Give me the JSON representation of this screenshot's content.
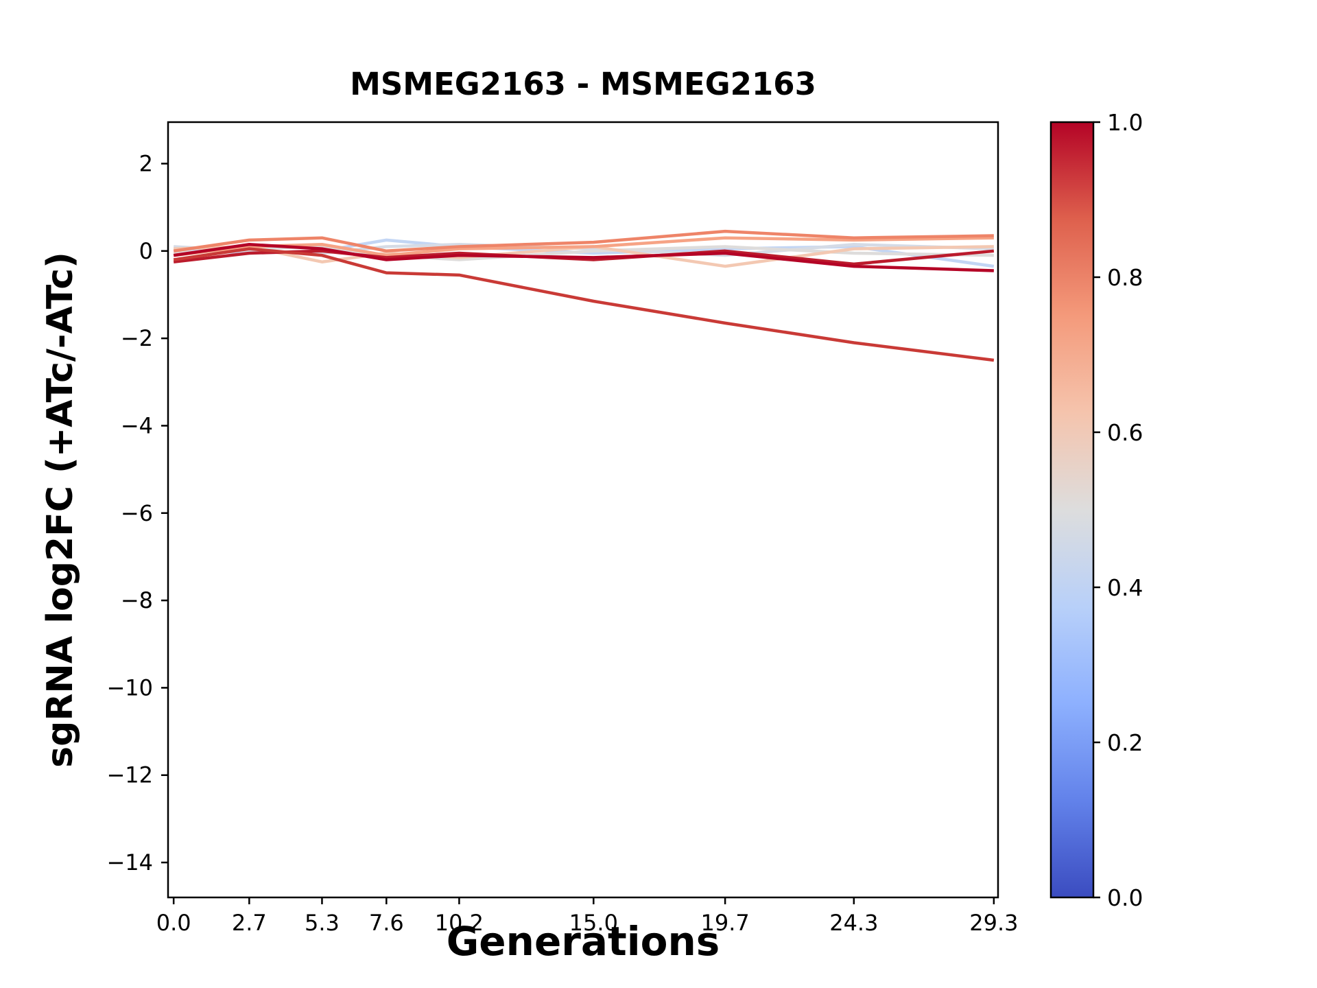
{
  "chart_data": {
    "type": "line",
    "title": "MSMEG2163 - MSMEG2163",
    "xlabel": "Generations",
    "ylabel": "sgRNA log2FC (+ATc/-ATc)",
    "x": [
      0.0,
      2.7,
      5.3,
      7.6,
      10.2,
      15.0,
      19.7,
      24.3,
      29.3
    ],
    "xticklabels": [
      "0.0",
      "2.7",
      "5.3",
      "7.6",
      "10.2",
      "15.0",
      "19.7",
      "24.3",
      "29.3"
    ],
    "yticks": [
      2,
      0,
      -2,
      -4,
      -6,
      -8,
      -10,
      -12,
      -14
    ],
    "xlim": [
      -0.2,
      29.45
    ],
    "ylim": [
      -14.8,
      2.95
    ],
    "grid": false,
    "legend": "none",
    "line_width": 4.5,
    "series": [
      {
        "cmap_value": 0.42,
        "color": "#c2d5f4",
        "values": [
          0.05,
          -0.05,
          0.0,
          0.25,
          0.1,
          -0.05,
          0.05,
          0.1,
          -0.35
        ]
      },
      {
        "cmap_value": 0.47,
        "color": "#d5dbe6",
        "values": [
          0.1,
          0.0,
          -0.05,
          0.1,
          0.15,
          0.05,
          -0.1,
          0.15,
          0.05
        ]
      },
      {
        "cmap_value": 0.52,
        "color": "#dedcdb",
        "values": [
          -0.05,
          0.05,
          0.1,
          -0.1,
          -0.2,
          0.0,
          0.1,
          -0.05,
          -0.1
        ]
      },
      {
        "cmap_value": 0.62,
        "color": "#f3c8b2",
        "values": [
          0.05,
          0.1,
          -0.25,
          -0.05,
          -0.15,
          0.1,
          -0.35,
          0.05,
          0.1
        ]
      },
      {
        "cmap_value": 0.72,
        "color": "#f6a385",
        "values": [
          -0.1,
          0.1,
          0.15,
          -0.1,
          0.05,
          0.1,
          0.3,
          0.25,
          0.3
        ]
      },
      {
        "cmap_value": 0.8,
        "color": "#ee8468",
        "values": [
          0.0,
          0.25,
          0.3,
          0.0,
          0.1,
          0.2,
          0.45,
          0.3,
          0.35
        ]
      },
      {
        "cmap_value": 0.97,
        "color": "#bb1b2c",
        "values": [
          -0.25,
          -0.05,
          0.0,
          -0.15,
          -0.05,
          -0.2,
          0.0,
          -0.3,
          0.0
        ]
      },
      {
        "cmap_value": 1.0,
        "color": "#b40426",
        "values": [
          -0.1,
          0.15,
          0.05,
          -0.2,
          -0.1,
          -0.15,
          -0.05,
          -0.35,
          -0.45
        ]
      },
      {
        "cmap_value": 0.92,
        "color": "#c93a36",
        "values": [
          -0.2,
          0.05,
          -0.1,
          -0.5,
          -0.55,
          -1.15,
          -1.65,
          -2.1,
          -2.5
        ]
      }
    ],
    "colorbar": {
      "min": 0.0,
      "max": 1.0,
      "ticks": [
        "0.0",
        "0.2",
        "0.4",
        "0.6",
        "0.8",
        "1.0"
      ],
      "colormap": "coolwarm",
      "stops": [
        {
          "pos": 0.0,
          "color": "#3b4cc0"
        },
        {
          "pos": 0.125,
          "color": "#6282ea"
        },
        {
          "pos": 0.25,
          "color": "#8db0fe"
        },
        {
          "pos": 0.375,
          "color": "#b8d0f9"
        },
        {
          "pos": 0.5,
          "color": "#dddddd"
        },
        {
          "pos": 0.625,
          "color": "#f5c4ad"
        },
        {
          "pos": 0.75,
          "color": "#f49a7b"
        },
        {
          "pos": 0.875,
          "color": "#de604d"
        },
        {
          "pos": 1.0,
          "color": "#b40426"
        }
      ]
    }
  }
}
